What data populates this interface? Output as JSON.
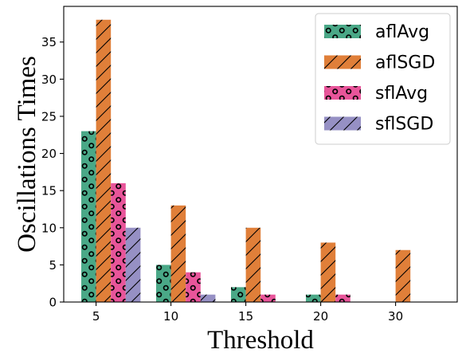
{
  "chart_data": {
    "type": "bar",
    "title": "",
    "xlabel": "Threshold",
    "ylabel": "Oscillations Times",
    "categories": [
      "5",
      "10",
      "15",
      "20",
      "30"
    ],
    "ylim": [
      0,
      39.8
    ],
    "yticks": [
      0,
      5,
      10,
      15,
      20,
      25,
      30,
      35
    ],
    "grid": false,
    "legend_position": "top-right",
    "series": [
      {
        "name": "aflAvg",
        "values": [
          23,
          5,
          2,
          1,
          0
        ],
        "color": "#4aa887",
        "hatch": "circles"
      },
      {
        "name": "aflSGD",
        "values": [
          38,
          13,
          10,
          8,
          7
        ],
        "color": "#e07f39",
        "hatch": "slash"
      },
      {
        "name": "sflAvg",
        "values": [
          16,
          4,
          1,
          1,
          0
        ],
        "color": "#e8559a",
        "hatch": "circles"
      },
      {
        "name": "sflSGD",
        "values": [
          10,
          1,
          0,
          0,
          0
        ],
        "color": "#9690c4",
        "hatch": "slash"
      }
    ]
  }
}
